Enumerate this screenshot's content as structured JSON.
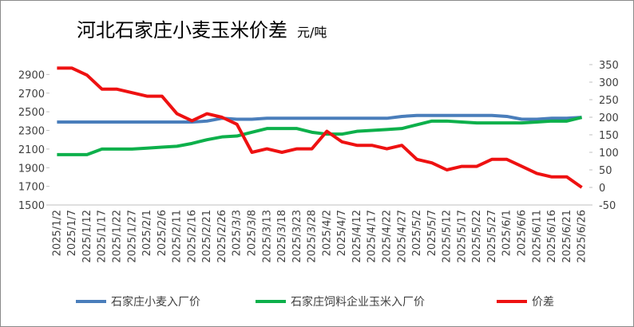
{
  "chart_data": {
    "type": "line",
    "title": "河北石家庄小麦玉米价差",
    "unit": "元/吨",
    "categories": [
      "2025/1/2",
      "2025/1/7",
      "2025/1/12",
      "2025/1/17",
      "2025/1/22",
      "2025/1/27",
      "2025/2/1",
      "2025/2/6",
      "2025/2/11",
      "2025/2/16",
      "2025/2/21",
      "2025/2/26",
      "2025/3/3",
      "2025/3/8",
      "2025/3/13",
      "2025/3/18",
      "2025/3/23",
      "2025/3/28",
      "2025/4/2",
      "2025/4/7",
      "2025/4/12",
      "2025/4/17",
      "2025/4/22",
      "2025/4/27",
      "2025/5/2",
      "2025/5/7",
      "2025/5/12",
      "2025/5/17",
      "2025/5/22",
      "2025/5/27",
      "2025/6/1",
      "2025/6/6",
      "2025/6/11",
      "2025/6/16",
      "2025/6/21",
      "2025/6/26"
    ],
    "series": [
      {
        "name": "石家庄小麦入厂价",
        "color": "#4a7ebb",
        "values": [
          2390,
          2390,
          2390,
          2390,
          2390,
          2390,
          2390,
          2390,
          2390,
          2390,
          2400,
          2430,
          2420,
          2420,
          2430,
          2430,
          2430,
          2430,
          2430,
          2430,
          2430,
          2430,
          2430,
          2450,
          2460,
          2460,
          2460,
          2460,
          2460,
          2460,
          2450,
          2420,
          2420,
          2430,
          2430,
          2440
        ]
      },
      {
        "name": "石家庄饲料企业玉米入厂价",
        "color": "#0db04b",
        "values": [
          2040,
          2040,
          2040,
          2100,
          2100,
          2100,
          2110,
          2120,
          2130,
          2160,
          2200,
          2230,
          2240,
          2280,
          2320,
          2320,
          2320,
          2280,
          2260,
          2260,
          2290,
          2300,
          2310,
          2320,
          2360,
          2400,
          2400,
          2390,
          2380,
          2380,
          2380,
          2380,
          2390,
          2400,
          2400,
          2440
        ]
      },
      {
        "name": "价差",
        "color": "#ee1111",
        "axis": "y2",
        "values": [
          340,
          340,
          320,
          280,
          280,
          270,
          260,
          260,
          210,
          190,
          210,
          200,
          180,
          100,
          110,
          100,
          110,
          110,
          160,
          130,
          120,
          120,
          110,
          120,
          80,
          70,
          50,
          60,
          60,
          80,
          80,
          60,
          40,
          30,
          30,
          0
        ]
      }
    ],
    "ylim": [
      1500,
      3100
    ],
    "yticks": [
      1500,
      1700,
      1900,
      2100,
      2300,
      2500,
      2700,
      2900
    ],
    "y2lim": [
      -50,
      375
    ],
    "y2ticks": [
      -50,
      0,
      50,
      100,
      150,
      200,
      250,
      300,
      350
    ],
    "legend": "bottom"
  }
}
